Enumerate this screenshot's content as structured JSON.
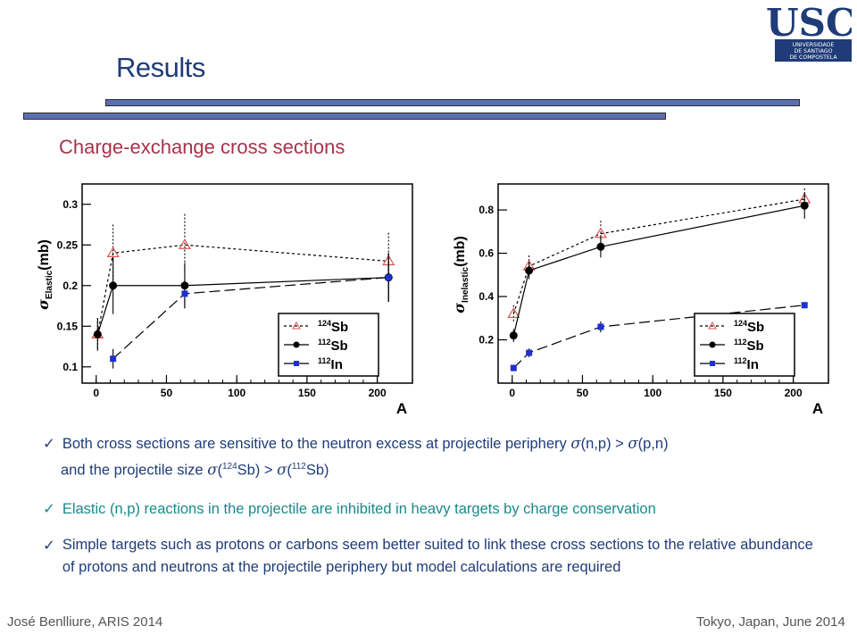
{
  "slide": {
    "title": "Results",
    "subtitle": "Charge-exchange  cross sections"
  },
  "logo": {
    "main": "USC",
    "line1": "UNIVERSIDADE",
    "line2": "DE SANTIAGO",
    "line3": "DE COMPOSTELA"
  },
  "bullets": {
    "b1_text1": "Both cross sections are sensitive to the neutron excess at projectile periphery ",
    "b1_sigma1": "σ",
    "b1_np": "(n,p) > ",
    "b1_sigma2": "σ",
    "b1_pn": "(p,n)",
    "b1_line2a": "and the projectile size ",
    "b1_sigma3": "σ",
    "b1_sup1": "124",
    "b1_sb1": "Sb) > ",
    "b1_sigma4": "σ",
    "b1_sup2": "112",
    "b1_sb2": "Sb)",
    "b2": "Elastic (n,p) reactions in the projectile are inhibited in heavy targets  by charge conservation",
    "b3": "Simple targets such as protons or carbons seem better suited to link these cross sections to the relative abundance of protons and neutrons at the projectile periphery but model calculations are required"
  },
  "footer": {
    "left": "José Benlliure, ARIS 2014",
    "right": "Tokyo, Japan, June 2014"
  },
  "colors": {
    "title": "#1f3c78",
    "subtitle": "#a8324a",
    "bullet_blue": "#1f3c78",
    "bullet_teal": "#1a8a8a",
    "sb124": "#d9534f",
    "sb112": "#000000",
    "in112": "#1f2fd6"
  },
  "chart_data": [
    {
      "type": "scatter",
      "ylabel_main": "σ",
      "ylabel_sub": "Elastic",
      "ylabel_unit": "(mb)",
      "xlabel": "A",
      "xlim": [
        -10,
        225
      ],
      "ylim": [
        0.08,
        0.325
      ],
      "xticks": [
        0,
        50,
        100,
        150,
        200
      ],
      "yticks": [
        0.1,
        0.15,
        0.2,
        0.25,
        0.3
      ],
      "ytick_labels": [
        "0.1",
        "0.15",
        "0.2",
        "0.25",
        "0.3"
      ],
      "x": [
        1,
        12,
        63,
        208
      ],
      "series": [
        {
          "name": "124Sb",
          "label_sup": "124",
          "label_el": "Sb",
          "marker": "triangle",
          "dash": "3,3",
          "values": [
            0.14,
            0.24,
            0.25,
            0.23
          ],
          "err": [
            0.02,
            0.035,
            0.038,
            0.035
          ]
        },
        {
          "name": "112Sb",
          "label_sup": "112",
          "label_el": "Sb",
          "marker": "circle",
          "dash": "",
          "values": [
            0.14,
            0.2,
            0.2,
            0.21
          ],
          "err": [
            0.02,
            0.035,
            0.028,
            0.03
          ]
        },
        {
          "name": "112In",
          "label_sup": "112",
          "label_el": "In",
          "marker": "square",
          "dash": "12,5",
          "values": [
            null,
            0.11,
            0.19,
            0.21
          ],
          "err": [
            null,
            0.012,
            0.018,
            0.03
          ]
        }
      ]
    },
    {
      "type": "scatter",
      "ylabel_main": "σ",
      "ylabel_sub": "Inelastic",
      "ylabel_unit": "(mb)",
      "xlabel": "A",
      "xlim": [
        -10,
        225
      ],
      "ylim": [
        0.0,
        0.92
      ],
      "xticks": [
        0,
        50,
        100,
        150,
        200
      ],
      "yticks": [
        0.2,
        0.4,
        0.6,
        0.8
      ],
      "ytick_labels": [
        "0.2",
        "0.4",
        "0.6",
        "0.8"
      ],
      "x": [
        1,
        12,
        63,
        208
      ],
      "series": [
        {
          "name": "124Sb",
          "label_sup": "124",
          "label_el": "Sb",
          "marker": "triangle",
          "dash": "3,3",
          "values": [
            0.32,
            0.54,
            0.69,
            0.85
          ],
          "err": [
            0.04,
            0.05,
            0.06,
            0.05
          ]
        },
        {
          "name": "112Sb",
          "label_sup": "112",
          "label_el": "Sb",
          "marker": "circle",
          "dash": "",
          "values": [
            0.22,
            0.52,
            0.63,
            0.82
          ],
          "err": [
            0.03,
            0.04,
            0.05,
            0.06
          ]
        },
        {
          "name": "112In",
          "label_sup": "112",
          "label_el": "In",
          "marker": "square",
          "dash": "12,5",
          "values": [
            0.07,
            0.14,
            0.26,
            0.36
          ],
          "err": [
            0.015,
            0.02,
            0.025,
            0.01
          ]
        }
      ]
    }
  ]
}
